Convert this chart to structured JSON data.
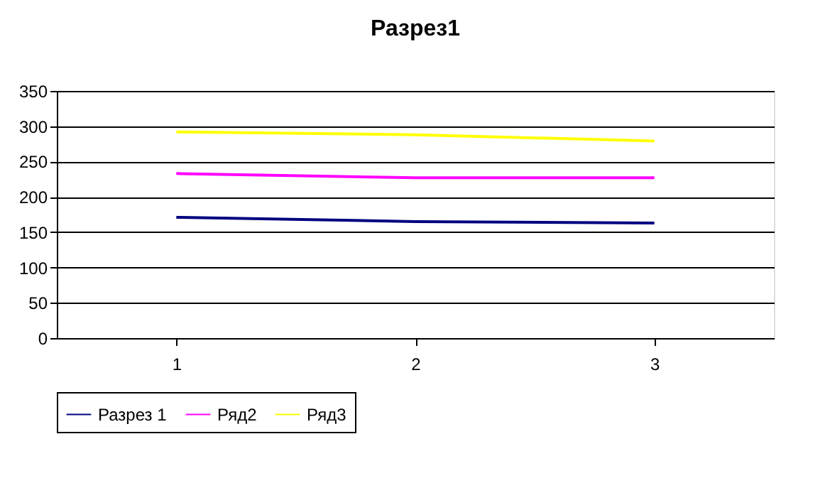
{
  "chart_data": {
    "type": "line",
    "title": "Разрез1",
    "categories": [
      "1",
      "2",
      "3"
    ],
    "series": [
      {
        "name": "Разрез 1",
        "color": "#000080",
        "values": [
          171,
          165,
          163
        ]
      },
      {
        "name": "Ряд2",
        "color": "#ff00ff",
        "values": [
          233,
          227,
          227
        ]
      },
      {
        "name": "Ряд3",
        "color": "#ffff00",
        "values": [
          292,
          288,
          279
        ]
      }
    ],
    "ylim": [
      0,
      350
    ],
    "yticks": [
      0,
      50,
      100,
      150,
      200,
      250,
      300,
      350
    ],
    "grid": "y",
    "legend": "bottom",
    "marker": "none",
    "line_style": "solid"
  }
}
